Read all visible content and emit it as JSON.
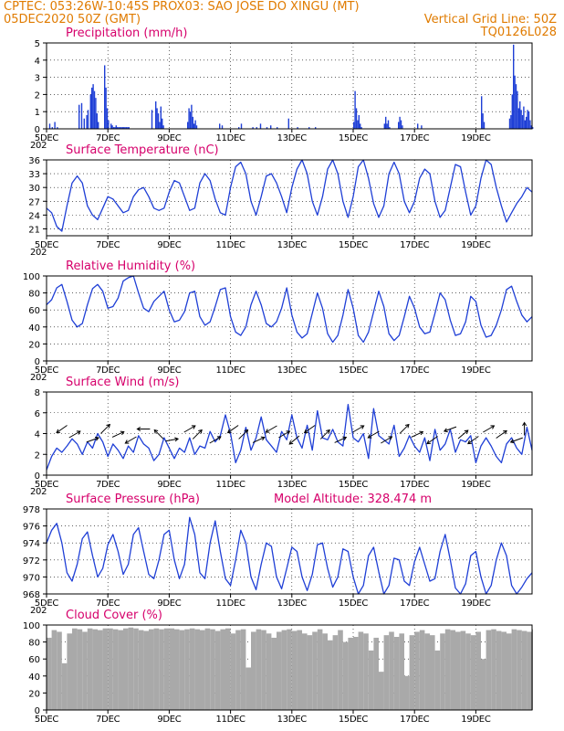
{
  "header": {
    "line1_left": "CPTEC: 053:26W-10:45S PROX03: SAO JOSE DO XINGU (MT)",
    "line2_left": "05DEC2020 50Z (GMT)",
    "line2_right": "Vertical Grid Line: 50Z",
    "line3_right": "TQ0126L028",
    "truncated_year_label": "202"
  },
  "colors": {
    "header": "#e07b00",
    "panel_title": "#d6006b",
    "series": "#1f3fd6",
    "cloud": "#a9a9a9",
    "wind_arrow": "#000000",
    "grid": "#000000"
  },
  "chart_data": [
    {
      "type": "bar",
      "title": "Precipitation (mm/h)",
      "x_tick_labels": [
        "5DEC",
        "7DEC",
        "9DEC",
        "11DEC",
        "13DEC",
        "15DEC",
        "17DEC",
        "19DEC"
      ],
      "ylim": [
        0,
        5
      ],
      "y_ticks": [
        0,
        1,
        2,
        3,
        4,
        5
      ],
      "grid": "dotted",
      "time_index_hours": [
        2,
        4,
        6,
        8,
        25,
        27,
        29,
        31,
        32,
        34,
        35,
        36,
        37,
        38,
        39,
        40,
        45,
        46,
        47,
        48,
        50,
        51,
        52,
        53,
        54,
        55,
        56,
        57,
        58,
        59,
        60,
        61,
        62,
        63,
        64,
        82,
        85,
        86,
        87,
        88,
        89,
        90,
        91,
        110,
        111,
        112,
        113,
        114,
        115,
        116,
        117,
        135,
        137,
        150,
        152,
        161,
        164,
        167,
        172,
        175,
        180,
        189,
        196,
        205,
        210,
        240,
        241,
        242,
        243,
        244,
        245,
        246,
        264,
        265,
        266,
        267,
        268,
        275,
        276,
        277,
        278,
        290,
        293,
        340,
        341,
        342,
        362,
        363,
        364,
        365,
        366,
        367,
        368,
        369,
        370,
        371,
        372,
        373,
        374,
        375,
        376,
        377,
        378,
        379,
        380
      ],
      "values": [
        0.3,
        0.1,
        0.4,
        0.1,
        1.4,
        1.5,
        0.6,
        0.8,
        1.1,
        2.0,
        2.4,
        2.6,
        2.2,
        1.8,
        0.9,
        0.4,
        3.7,
        2.4,
        1.2,
        0.5,
        0.3,
        0.2,
        0.1,
        0.1,
        0.2,
        0.1,
        0.1,
        0.1,
        0.1,
        0.1,
        0.1,
        0.1,
        0.1,
        0.1,
        0.1,
        1.1,
        1.6,
        1.2,
        0.9,
        0.4,
        1.3,
        0.6,
        0.2,
        0.4,
        1.2,
        1.0,
        1.4,
        0.7,
        0.3,
        0.5,
        0.2,
        0.3,
        0.2,
        0.1,
        0.3,
        0.1,
        0.1,
        0.3,
        0.1,
        0.2,
        0.1,
        0.6,
        0.1,
        0.1,
        0.1,
        0.4,
        2.2,
        1.2,
        0.5,
        0.8,
        0.3,
        0.1,
        0.3,
        0.7,
        0.3,
        0.5,
        0.1,
        0.4,
        0.7,
        0.5,
        0.2,
        0.3,
        0.2,
        1.9,
        0.9,
        0.4,
        0.6,
        0.8,
        2.0,
        4.9,
        3.1,
        2.6,
        2.2,
        1.2,
        1.6,
        1.1,
        0.8,
        1.3,
        0.5,
        0.7,
        1.1,
        1.0,
        0.5,
        0.2,
        0.1
      ]
    },
    {
      "type": "line",
      "title": "Surface Temperature (nC)",
      "x_tick_labels": [
        "5DEC",
        "7DEC",
        "9DEC",
        "11DEC",
        "13DEC",
        "15DEC",
        "17DEC",
        "19DEC"
      ],
      "ylim": [
        19.5,
        36
      ],
      "y_ticks": [
        21,
        24,
        27,
        30,
        33,
        36
      ],
      "grid": "dotted",
      "x_hours": [
        0,
        4,
        8,
        12,
        16,
        20,
        24,
        28,
        32,
        36,
        40,
        44,
        48,
        52,
        56,
        60,
        64,
        68,
        72,
        76,
        80,
        84,
        88,
        92,
        96,
        100,
        104,
        108,
        112,
        116,
        120,
        124,
        128,
        132,
        136,
        140,
        144,
        148,
        152,
        156,
        160,
        164,
        168,
        172,
        176,
        180,
        184,
        188,
        192,
        196,
        200,
        204,
        208,
        212,
        216,
        220,
        224,
        228,
        232,
        236,
        240,
        244,
        248,
        252,
        256,
        260,
        264,
        268,
        272,
        276,
        280,
        284,
        288,
        292,
        296,
        300,
        304,
        308,
        312,
        316,
        320,
        324,
        328,
        332,
        336,
        340,
        344,
        348,
        352,
        356,
        360,
        364,
        368,
        372,
        376,
        380
      ],
      "values": [
        25.5,
        24.5,
        21.5,
        20.5,
        26.0,
        31.0,
        32.5,
        31.0,
        26.0,
        24.0,
        23.0,
        25.5,
        28.0,
        27.5,
        26.0,
        24.5,
        25.0,
        28.0,
        29.5,
        30.0,
        28.0,
        25.5,
        25.0,
        25.5,
        29.0,
        31.5,
        31.0,
        28.0,
        25.0,
        25.5,
        31.0,
        33.0,
        31.5,
        27.5,
        24.5,
        24.0,
        30.0,
        34.5,
        35.5,
        33.0,
        27.0,
        24.0,
        28.0,
        32.5,
        33.0,
        31.0,
        28.0,
        24.5,
        30.0,
        34.0,
        36.0,
        33.0,
        27.0,
        24.0,
        28.0,
        34.0,
        36.0,
        33.0,
        27.0,
        23.5,
        28.0,
        34.5,
        36.0,
        32.0,
        26.5,
        23.5,
        26.0,
        33.0,
        35.5,
        33.0,
        27.0,
        24.5,
        27.0,
        32.0,
        34.0,
        33.0,
        27.0,
        23.5,
        25.0,
        30.0,
        35.0,
        34.5,
        29.0,
        24.0,
        26.0,
        32.0,
        36.0,
        35.0,
        30.0,
        26.0,
        22.5,
        24.5,
        26.5,
        28.0,
        30.0,
        29.0
      ]
    },
    {
      "type": "line",
      "title": "Relative Humidity (%)",
      "x_tick_labels": [
        "5DEC",
        "7DEC",
        "9DEC",
        "11DEC",
        "13DEC",
        "15DEC",
        "17DEC",
        "19DEC"
      ],
      "ylim": [
        0,
        100
      ],
      "y_ticks": [
        0,
        20,
        40,
        60,
        80,
        100
      ],
      "grid": "dotted",
      "x_hours": [
        0,
        4,
        8,
        12,
        16,
        20,
        24,
        28,
        32,
        36,
        40,
        44,
        48,
        52,
        56,
        60,
        64,
        68,
        72,
        76,
        80,
        84,
        88,
        92,
        96,
        100,
        104,
        108,
        112,
        116,
        120,
        124,
        128,
        132,
        136,
        140,
        144,
        148,
        152,
        156,
        160,
        164,
        168,
        172,
        176,
        180,
        184,
        188,
        192,
        196,
        200,
        204,
        208,
        212,
        216,
        220,
        224,
        228,
        232,
        236,
        240,
        244,
        248,
        252,
        256,
        260,
        264,
        268,
        272,
        276,
        280,
        284,
        288,
        292,
        296,
        300,
        304,
        308,
        312,
        316,
        320,
        324,
        328,
        332,
        336,
        340,
        344,
        348,
        352,
        356,
        360,
        364,
        368,
        372,
        376,
        380
      ],
      "values": [
        66,
        72,
        86,
        90,
        70,
        48,
        40,
        44,
        66,
        85,
        90,
        82,
        62,
        64,
        74,
        94,
        98,
        100,
        80,
        62,
        58,
        70,
        76,
        82,
        60,
        46,
        48,
        58,
        80,
        82,
        52,
        42,
        46,
        64,
        84,
        86,
        52,
        34,
        30,
        40,
        66,
        82,
        66,
        44,
        40,
        46,
        62,
        86,
        54,
        34,
        27,
        32,
        56,
        80,
        62,
        32,
        22,
        30,
        54,
        84,
        62,
        30,
        22,
        34,
        58,
        82,
        64,
        32,
        24,
        30,
        52,
        76,
        62,
        40,
        32,
        34,
        56,
        80,
        72,
        48,
        30,
        32,
        46,
        76,
        70,
        42,
        28,
        30,
        42,
        60,
        84,
        88,
        70,
        54,
        46,
        52
      ]
    },
    {
      "type": "line",
      "title": "Surface Wind (m/s)",
      "x_tick_labels": [
        "5DEC",
        "7DEC",
        "9DEC",
        "11DEC",
        "13DEC",
        "15DEC",
        "17DEC",
        "19DEC"
      ],
      "ylim": [
        0,
        8
      ],
      "y_ticks": [
        0,
        2,
        4,
        6,
        8
      ],
      "grid": "dotted",
      "x_hours": [
        0,
        4,
        8,
        12,
        16,
        20,
        24,
        28,
        32,
        36,
        40,
        44,
        48,
        52,
        56,
        60,
        64,
        68,
        72,
        76,
        80,
        84,
        88,
        92,
        96,
        100,
        104,
        108,
        112,
        116,
        120,
        124,
        128,
        132,
        136,
        140,
        144,
        148,
        152,
        156,
        160,
        164,
        168,
        172,
        176,
        180,
        184,
        188,
        192,
        196,
        200,
        204,
        208,
        212,
        216,
        220,
        224,
        228,
        232,
        236,
        240,
        244,
        248,
        252,
        256,
        260,
        264,
        268,
        272,
        276,
        280,
        284,
        288,
        292,
        296,
        300,
        304,
        308,
        312,
        316,
        320,
        324,
        328,
        332,
        336,
        340,
        344,
        348,
        352,
        356,
        360,
        364,
        368,
        372,
        376,
        380
      ],
      "values": [
        0.5,
        1.8,
        2.6,
        2.2,
        2.8,
        3.5,
        3.0,
        2.0,
        3.2,
        2.6,
        4.0,
        3.2,
        1.8,
        3.0,
        2.4,
        1.6,
        2.8,
        2.2,
        3.8,
        3.0,
        2.6,
        1.4,
        2.0,
        3.6,
        2.6,
        1.6,
        2.6,
        2.2,
        3.6,
        2.0,
        2.8,
        2.6,
        4.2,
        3.2,
        3.8,
        5.8,
        4.0,
        1.2,
        2.4,
        4.6,
        2.4,
        3.6,
        5.6,
        3.4,
        2.8,
        2.2,
        4.2,
        3.4,
        5.8,
        3.6,
        2.6,
        4.8,
        2.4,
        6.2,
        3.6,
        3.4,
        4.4,
        3.2,
        2.8,
        6.8,
        3.6,
        3.2,
        4.0,
        1.6,
        6.4,
        3.8,
        3.4,
        3.0,
        4.8,
        1.8,
        2.6,
        3.8,
        2.8,
        2.2,
        3.6,
        1.4,
        4.4,
        2.4,
        3.0,
        4.4,
        2.2,
        3.4,
        3.2,
        3.8,
        1.2,
        2.8,
        3.6,
        2.8,
        1.8,
        1.2,
        3.0,
        3.6,
        2.6,
        2.0,
        4.6,
        2.4
      ],
      "wind_arrows_hours": [
        12,
        22,
        36,
        46,
        56,
        66,
        76,
        88,
        98,
        112,
        118,
        132,
        146,
        154,
        166,
        176,
        186,
        194,
        206,
        218,
        230,
        244,
        256,
        266,
        280,
        290,
        302,
        316,
        326,
        334,
        346,
        356,
        368,
        374
      ],
      "wind_arrows_deg": [
        215,
        30,
        20,
        45,
        25,
        210,
        180,
        135,
        10,
        30,
        45,
        30,
        215,
        45,
        25,
        210,
        30,
        220,
        215,
        45,
        25,
        30,
        210,
        30,
        45,
        25,
        215,
        200,
        40,
        215,
        30,
        35,
        200,
        90
      ]
    },
    {
      "type": "line",
      "title": "Surface Pressure (hPa)",
      "annotation": "Model Altitude: 328.474 m",
      "x_tick_labels": [
        "5DEC",
        "7DEC",
        "9DEC",
        "11DEC",
        "13DEC",
        "15DEC",
        "17DEC",
        "19DEC"
      ],
      "ylim": [
        968,
        978
      ],
      "y_ticks": [
        968,
        970,
        972,
        974,
        976,
        978
      ],
      "grid": "dotted",
      "x_hours": [
        0,
        4,
        8,
        12,
        16,
        20,
        24,
        28,
        32,
        36,
        40,
        44,
        48,
        52,
        56,
        60,
        64,
        68,
        72,
        76,
        80,
        84,
        88,
        92,
        96,
        100,
        104,
        108,
        112,
        116,
        120,
        124,
        128,
        132,
        136,
        140,
        144,
        148,
        152,
        156,
        160,
        164,
        168,
        172,
        176,
        180,
        184,
        188,
        192,
        196,
        200,
        204,
        208,
        212,
        216,
        220,
        224,
        228,
        232,
        236,
        240,
        244,
        248,
        252,
        256,
        260,
        264,
        268,
        272,
        276,
        280,
        284,
        288,
        292,
        296,
        300,
        304,
        308,
        312,
        316,
        320,
        324,
        328,
        332,
        336,
        340,
        344,
        348,
        352,
        356,
        360,
        364,
        368,
        372,
        376,
        380
      ],
      "values": [
        974.0,
        975.5,
        976.3,
        974.0,
        970.5,
        969.5,
        971.5,
        974.5,
        975.3,
        972.5,
        970.0,
        971.0,
        973.8,
        975.0,
        973.0,
        970.3,
        971.5,
        975.0,
        975.8,
        973.0,
        970.3,
        969.8,
        972.0,
        975.0,
        975.5,
        972.0,
        969.8,
        971.5,
        977.0,
        975.0,
        970.5,
        969.8,
        974.0,
        976.6,
        973.0,
        969.8,
        969.0,
        972.0,
        975.5,
        974.0,
        970.0,
        968.5,
        971.5,
        974.0,
        973.6,
        970.0,
        968.6,
        971.0,
        973.5,
        973.0,
        970.0,
        968.4,
        970.3,
        973.8,
        974.0,
        971.0,
        968.8,
        970.0,
        973.3,
        973.0,
        970.0,
        968.0,
        969.0,
        972.5,
        973.5,
        970.6,
        968.0,
        969.0,
        972.2,
        972.0,
        969.5,
        969.0,
        971.8,
        973.5,
        971.5,
        969.5,
        969.8,
        973.0,
        975.0,
        972.0,
        968.7,
        968.0,
        969.2,
        972.5,
        973.0,
        970.0,
        968.0,
        969.0,
        972.0,
        974.0,
        972.5,
        969.0,
        968.0,
        968.8,
        969.8,
        970.5
      ]
    },
    {
      "type": "bar",
      "title": "Cloud Cover (%)",
      "x_tick_labels": [
        "5DEC",
        "7DEC",
        "9DEC",
        "11DEC",
        "13DEC",
        "15DEC",
        "17DEC",
        "19DEC"
      ],
      "ylim": [
        0,
        100
      ],
      "y_ticks": [
        0,
        20,
        40,
        60,
        80,
        100
      ],
      "grid": "dotted",
      "x_hours": [
        0,
        4,
        8,
        12,
        16,
        20,
        24,
        28,
        32,
        36,
        40,
        44,
        48,
        52,
        56,
        60,
        64,
        68,
        72,
        76,
        80,
        84,
        88,
        92,
        96,
        100,
        104,
        108,
        112,
        116,
        120,
        124,
        128,
        132,
        136,
        140,
        144,
        148,
        152,
        156,
        160,
        164,
        168,
        172,
        176,
        180,
        184,
        188,
        192,
        196,
        200,
        204,
        208,
        212,
        216,
        220,
        224,
        228,
        232,
        236,
        240,
        244,
        248,
        252,
        256,
        260,
        264,
        268,
        272,
        276,
        280,
        284,
        288,
        292,
        296,
        300,
        304,
        308,
        312,
        316,
        320,
        324,
        328,
        332,
        336,
        340,
        344,
        348,
        352,
        356,
        360,
        364,
        368,
        372,
        376,
        380
      ],
      "values": [
        85,
        94,
        92,
        55,
        90,
        96,
        95,
        92,
        96,
        95,
        94,
        96,
        96,
        95,
        94,
        96,
        97,
        96,
        94,
        93,
        95,
        96,
        95,
        96,
        96,
        95,
        94,
        95,
        96,
        95,
        94,
        96,
        95,
        93,
        95,
        96,
        90,
        94,
        95,
        50,
        92,
        95,
        94,
        90,
        85,
        92,
        94,
        95,
        93,
        94,
        90,
        88,
        92,
        95,
        90,
        82,
        88,
        94,
        80,
        85,
        86,
        92,
        90,
        70,
        85,
        45,
        88,
        92,
        86,
        90,
        40,
        88,
        92,
        94,
        90,
        88,
        70,
        90,
        95,
        94,
        92,
        93,
        90,
        88,
        92,
        60,
        94,
        95,
        93,
        92,
        90,
        95,
        94,
        93,
        92,
        95
      ]
    }
  ]
}
